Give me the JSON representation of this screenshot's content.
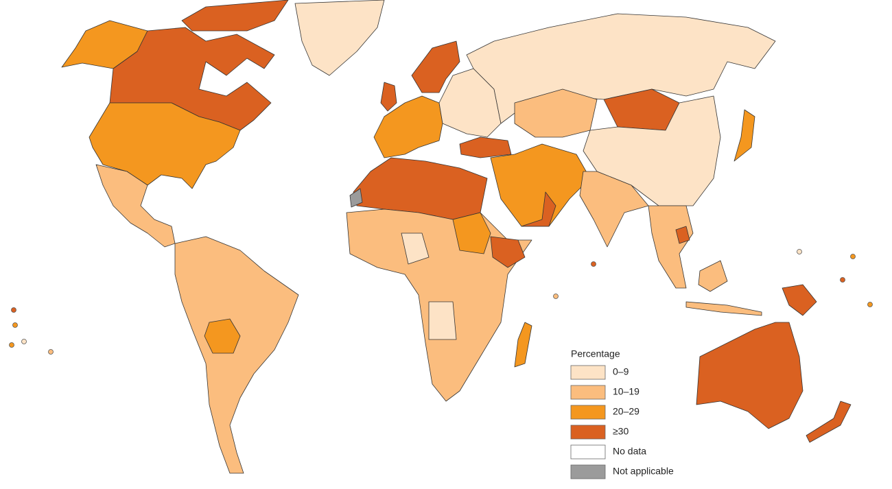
{
  "legend": {
    "title": "Percentage",
    "items": [
      {
        "label": "0–9",
        "color": "#fde3c6"
      },
      {
        "label": "10–19",
        "color": "#fbbd7e"
      },
      {
        "label": "20–29",
        "color": "#f4971f"
      },
      {
        "label": "≥30",
        "color": "#da6121"
      },
      {
        "label": "No data",
        "color": "#ffffff"
      },
      {
        "label": "Not applicable",
        "color": "#9b9b9b"
      }
    ]
  }
}
